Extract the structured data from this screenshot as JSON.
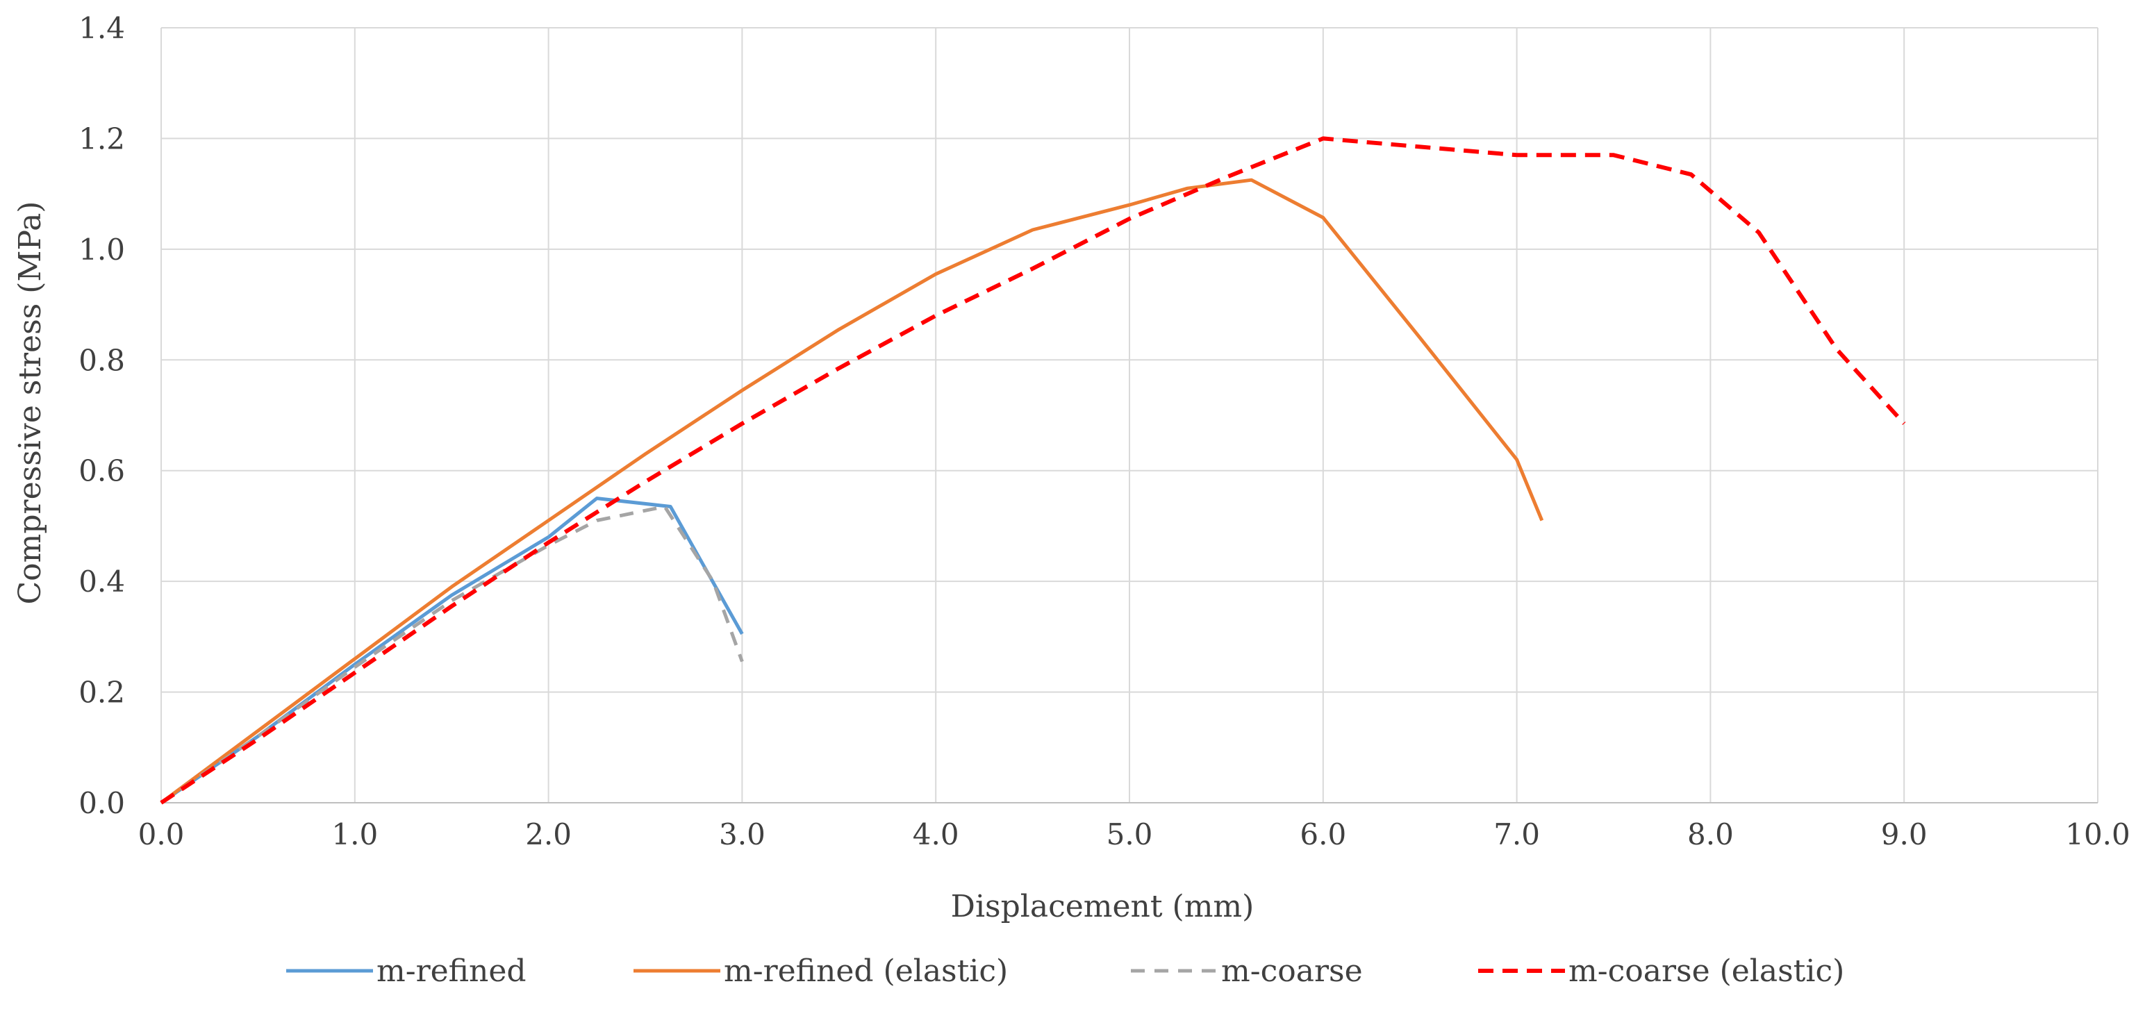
{
  "chart_data": {
    "type": "line",
    "title": "",
    "xlabel": "Displacement  (mm)",
    "ylabel": "Compressive  stress  (MPa)",
    "xlim": [
      0,
      10
    ],
    "ylim": [
      0,
      1.4
    ],
    "x_ticks": [
      "0.0",
      "1.0",
      "2.0",
      "3.0",
      "4.0",
      "5.0",
      "6.0",
      "7.0",
      "8.0",
      "9.0",
      "10.0"
    ],
    "y_ticks": [
      "0.0",
      "0.2",
      "0.4",
      "0.6",
      "0.8",
      "1.0",
      "1.2",
      "1.4"
    ],
    "grid": true,
    "legend_position": "bottom",
    "series": [
      {
        "name": "m-refined",
        "color": "#5b9bd5",
        "dash": "solid",
        "points": [
          [
            0,
            0
          ],
          [
            0.5,
            0.12
          ],
          [
            1.0,
            0.25
          ],
          [
            1.5,
            0.375
          ],
          [
            2.0,
            0.48
          ],
          [
            2.25,
            0.55
          ],
          [
            2.63,
            0.535
          ],
          [
            3.0,
            0.305
          ]
        ]
      },
      {
        "name": "m-refined (elastic)",
        "color": "#ed7d31",
        "dash": "solid",
        "points": [
          [
            0,
            0
          ],
          [
            0.5,
            0.13
          ],
          [
            1.0,
            0.26
          ],
          [
            1.5,
            0.39
          ],
          [
            2.0,
            0.51
          ],
          [
            2.5,
            0.63
          ],
          [
            3.0,
            0.745
          ],
          [
            3.5,
            0.855
          ],
          [
            4.0,
            0.955
          ],
          [
            4.5,
            1.035
          ],
          [
            5.0,
            1.08
          ],
          [
            5.3,
            1.11
          ],
          [
            5.63,
            1.125
          ],
          [
            6.0,
            1.057
          ],
          [
            6.5,
            0.84
          ],
          [
            7.0,
            0.62
          ],
          [
            7.13,
            0.51
          ]
        ]
      },
      {
        "name": "m-coarse",
        "color": "#a5a5a5",
        "dash": "dashed",
        "points": [
          [
            0,
            0
          ],
          [
            0.5,
            0.12
          ],
          [
            1.0,
            0.245
          ],
          [
            1.5,
            0.365
          ],
          [
            2.0,
            0.465
          ],
          [
            2.25,
            0.51
          ],
          [
            2.6,
            0.535
          ],
          [
            2.85,
            0.4
          ],
          [
            3.0,
            0.255
          ]
        ]
      },
      {
        "name": "m-coarse (elastic)",
        "color": "#ff0000",
        "dash": "dashed",
        "points": [
          [
            0,
            0
          ],
          [
            0.5,
            0.115
          ],
          [
            1.0,
            0.235
          ],
          [
            1.5,
            0.355
          ],
          [
            2.0,
            0.47
          ],
          [
            2.5,
            0.58
          ],
          [
            3.0,
            0.685
          ],
          [
            3.5,
            0.785
          ],
          [
            4.0,
            0.88
          ],
          [
            4.5,
            0.965
          ],
          [
            5.0,
            1.055
          ],
          [
            5.5,
            1.13
          ],
          [
            6.0,
            1.2
          ],
          [
            6.5,
            1.185
          ],
          [
            7.0,
            1.17
          ],
          [
            7.5,
            1.17
          ],
          [
            7.9,
            1.135
          ],
          [
            8.25,
            1.03
          ],
          [
            8.65,
            0.82
          ],
          [
            9.0,
            0.685
          ]
        ]
      }
    ]
  }
}
